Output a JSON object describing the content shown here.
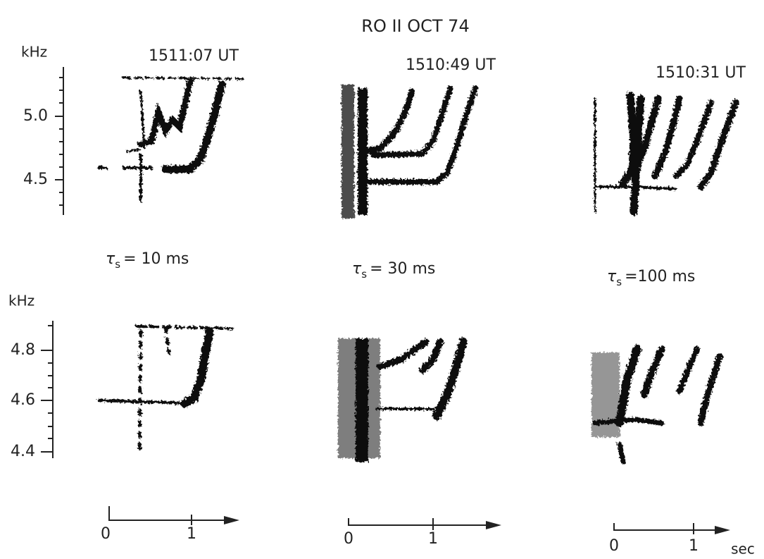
{
  "title": "RO II OCT 74",
  "axes": [
    {
      "unit": "kHz",
      "ticks": [
        "5.0",
        "4.5"
      ]
    },
    {
      "unit": "kHz",
      "ticks": [
        "4.8",
        "4.6",
        "4.4"
      ]
    }
  ],
  "panels": [
    {
      "time": "1511:07 UT",
      "tau": {
        "symbol": "τ",
        "sub": "s",
        "rest": "= 10 ms"
      },
      "time_axis": [
        "0",
        "1"
      ]
    },
    {
      "time": "1510:49 UT",
      "tau": {
        "symbol": "τ",
        "sub": "s",
        "rest": "= 30 ms"
      },
      "time_axis": [
        "0",
        "1"
      ]
    },
    {
      "time": "1510:31 UT",
      "tau": {
        "symbol": "τ",
        "sub": "s",
        "rest": "=100 ms"
      },
      "time_axis": [
        "0",
        "1"
      ]
    }
  ],
  "time_unit": "sec"
}
